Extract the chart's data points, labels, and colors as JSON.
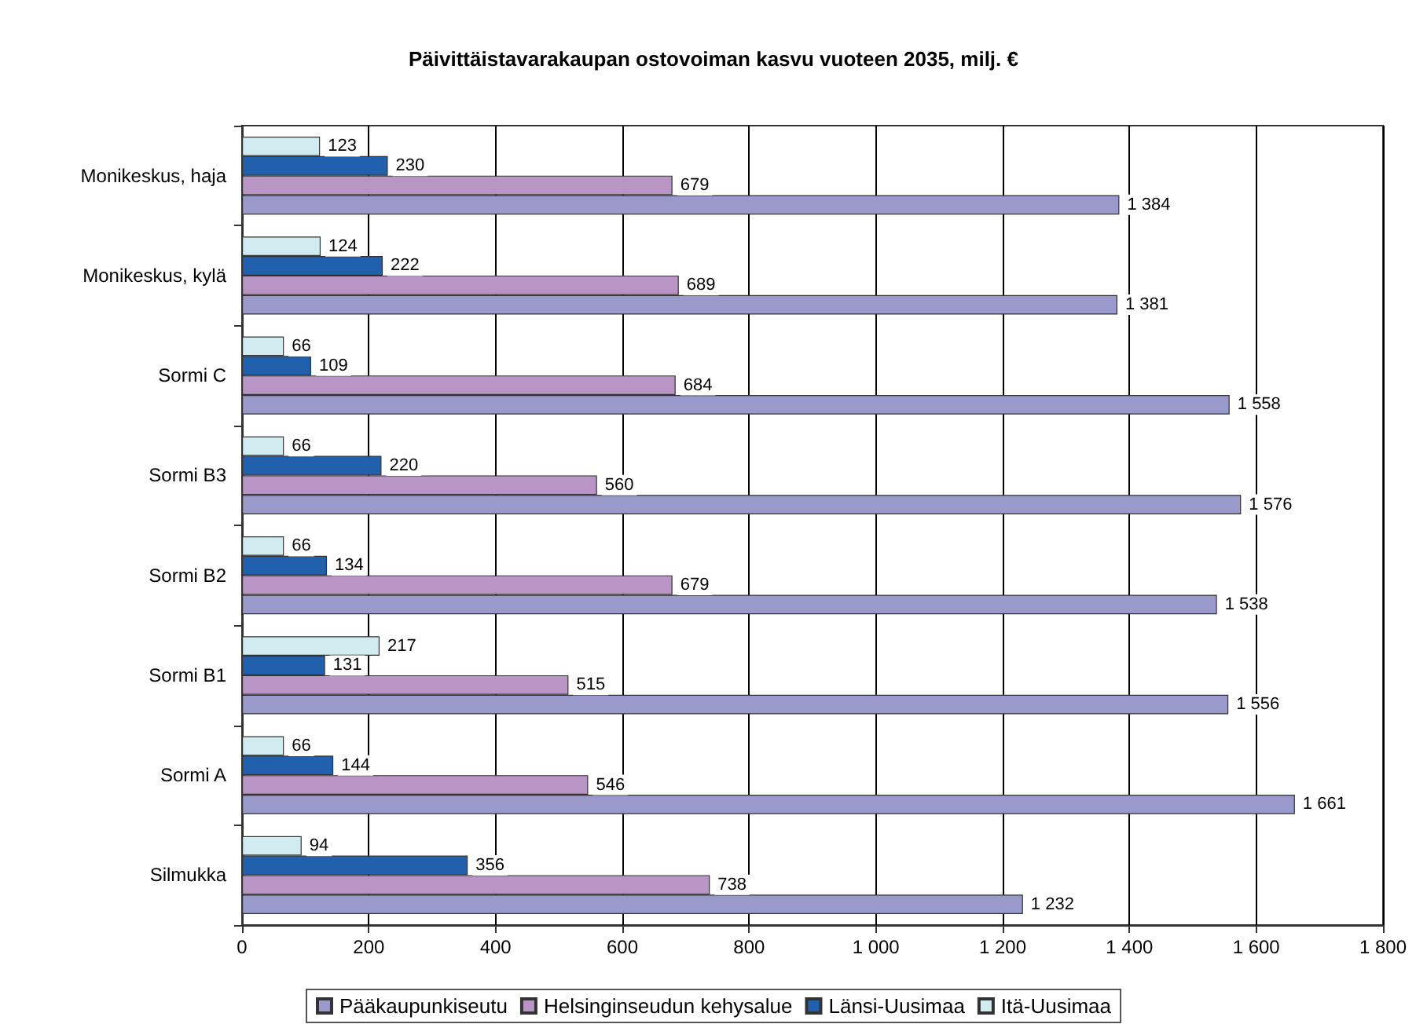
{
  "chart_data": {
    "type": "bar",
    "orientation": "horizontal",
    "title": "Päivittäistavarakaupan ostovoiman kasvu vuoteen 2035, milj. €",
    "categories": [
      "Monikeskus, haja",
      "Monikeskus, kylä",
      "Sormi C",
      "Sormi B3",
      "Sormi B2",
      "Sormi B1",
      "Sormi A",
      "Silmukka"
    ],
    "series": [
      {
        "name": "Pääkaupunkiseutu",
        "color": "#9999cc",
        "values": [
          1384,
          1381,
          1558,
          1576,
          1538,
          1556,
          1661,
          1232
        ],
        "value_labels": [
          "1 384",
          "1 381",
          "1 558",
          "1 576",
          "1 538",
          "1 556",
          "1 661",
          "1 232"
        ]
      },
      {
        "name": "Helsinginseudun kehysalue",
        "color": "#b895c4",
        "values": [
          679,
          689,
          684,
          560,
          679,
          515,
          546,
          738
        ],
        "value_labels": [
          "679",
          "689",
          "684",
          "560",
          "679",
          "515",
          "546",
          "738"
        ]
      },
      {
        "name": "Länsi-Uusimaa",
        "color": "#2160ac",
        "values": [
          230,
          222,
          109,
          220,
          134,
          131,
          144,
          356
        ],
        "value_labels": [
          "230",
          "222",
          "109",
          "220",
          "134",
          "131",
          "144",
          "356"
        ]
      },
      {
        "name": "Itä-Uusimaa",
        "color": "#d0ecf0",
        "values": [
          123,
          124,
          66,
          66,
          66,
          217,
          66,
          94
        ],
        "value_labels": [
          "123",
          "124",
          "66",
          "66",
          "66",
          "217",
          "66",
          "94"
        ]
      }
    ],
    "xlim": [
      0,
      1800
    ],
    "xticks": [
      0,
      200,
      400,
      600,
      800,
      {
        "value": 1000,
        "label": "1 000"
      },
      {
        "value": 1200,
        "label": "1 200"
      },
      {
        "value": 1400,
        "label": "1 400"
      },
      {
        "value": 1600,
        "label": "1 600"
      },
      {
        "value": 1800,
        "label": "1 800"
      }
    ],
    "grid": "x",
    "legend": "bottom"
  }
}
